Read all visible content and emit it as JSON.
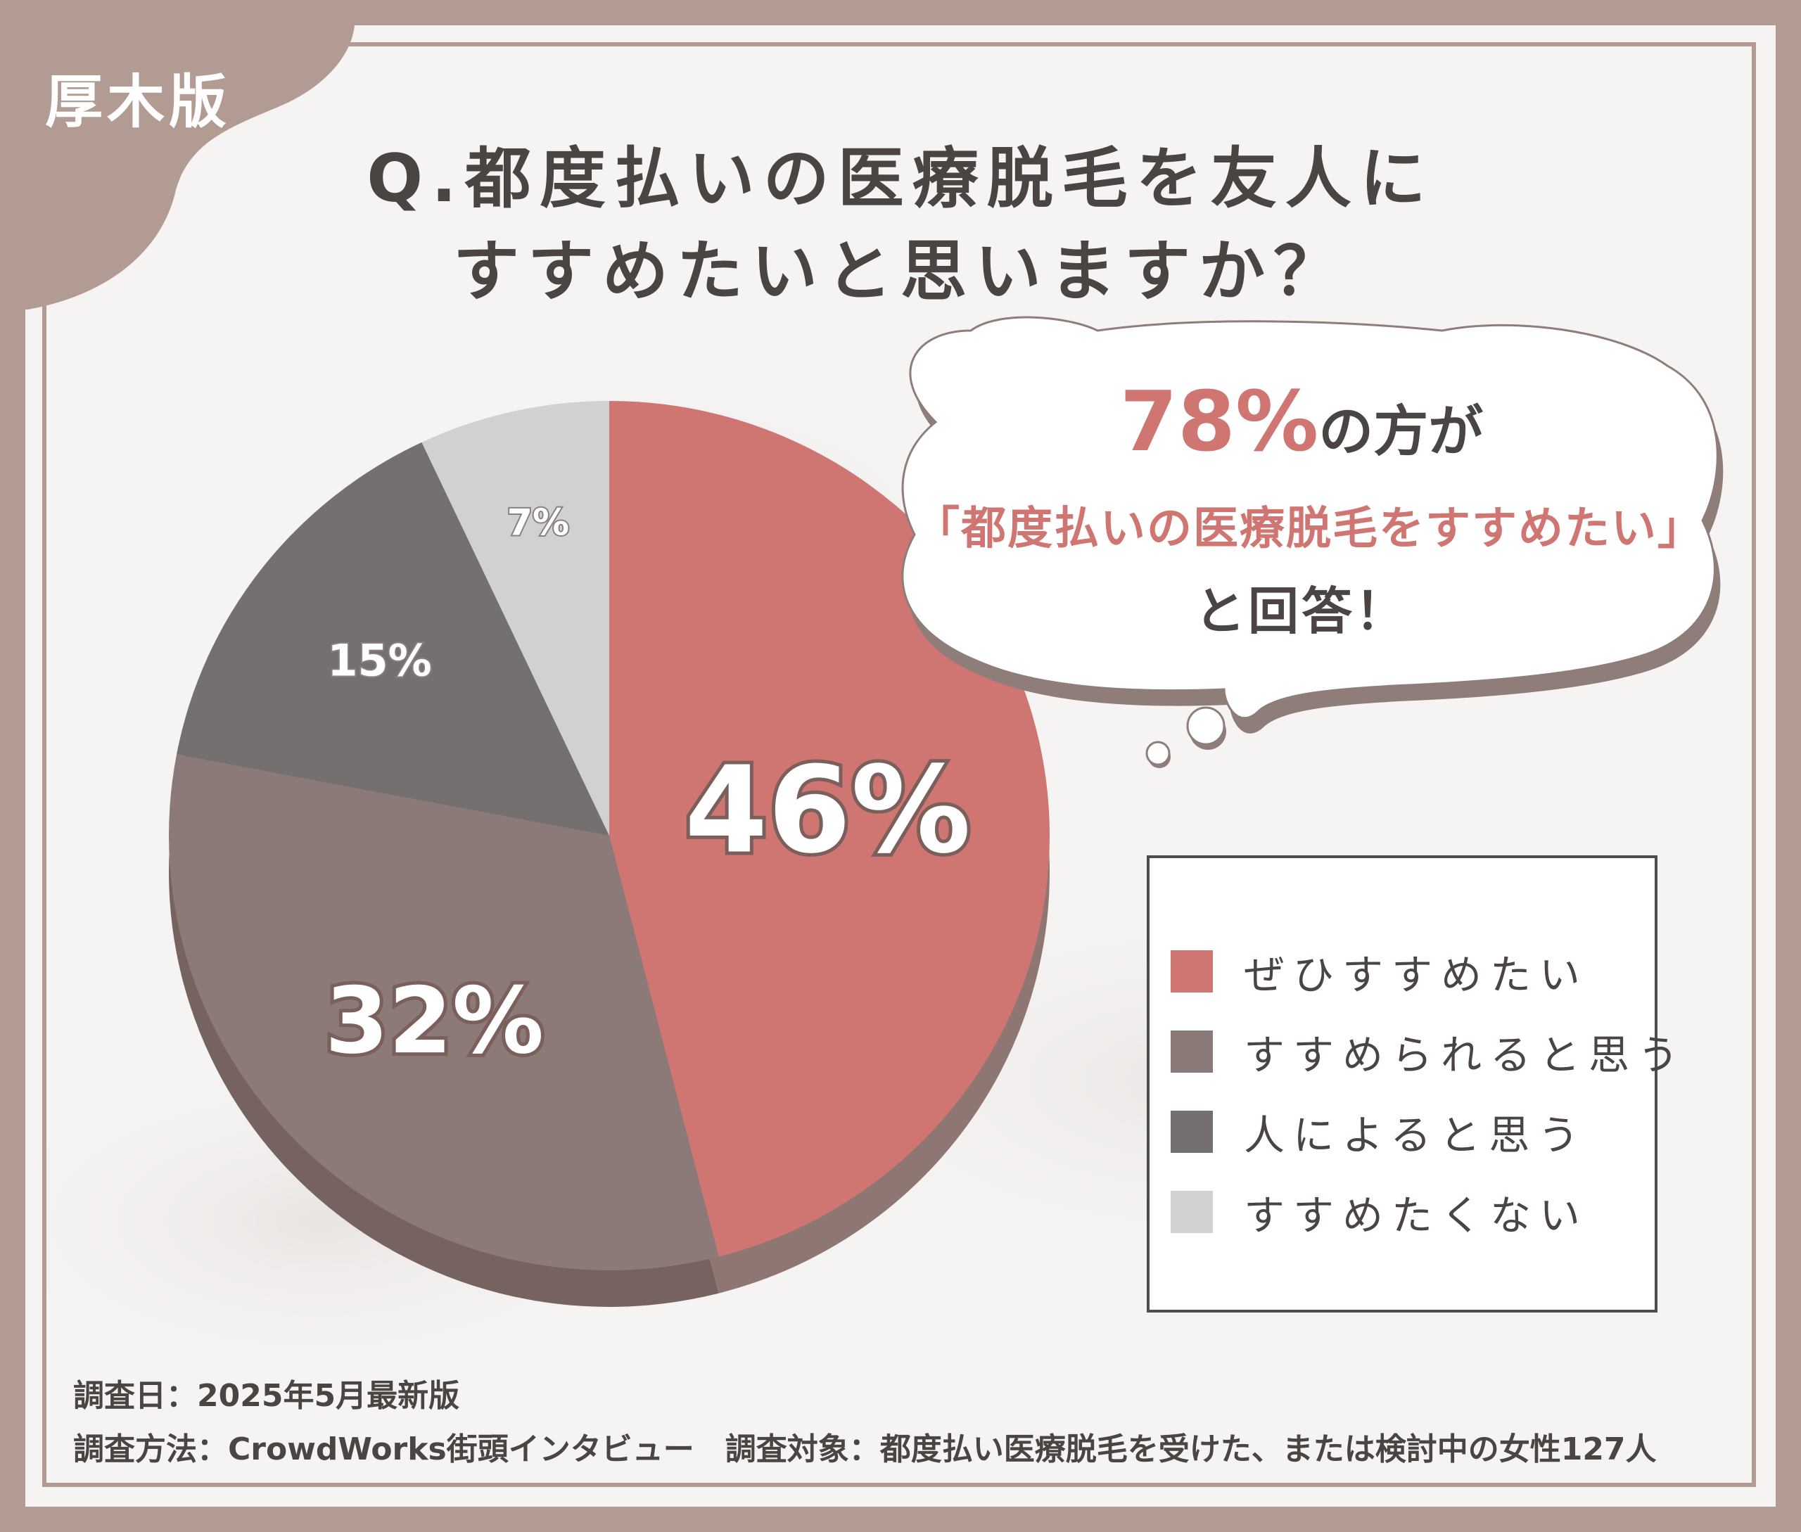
{
  "badge": "厚木版",
  "title": {
    "line1": "Q.都度払いの医療脱毛を友人に",
    "line2": "すすめたいと思いますか？"
  },
  "callout": {
    "percent": "78%",
    "line1_suffix": "の方が",
    "line2": "「都度払いの医療脱毛をすすめたい」",
    "line3": "と回答！"
  },
  "chart_data": {
    "type": "pie",
    "categories": [
      "ぜひすすめたい",
      "すすめられると思う",
      "人によると思う",
      "すすめたくない"
    ],
    "values": [
      46,
      32,
      15,
      7
    ],
    "labels": [
      "46%",
      "32%",
      "15%",
      "7%"
    ],
    "colors": [
      "#cf7672",
      "#8c7a78",
      "#757070",
      "#d1d1d1"
    ],
    "legend_position": "right"
  },
  "legend": {
    "items": [
      {
        "label": "ぜひすすめたい",
        "color": "#cf7672"
      },
      {
        "label": "すすめられると思う",
        "color": "#8c7a78"
      },
      {
        "label": "人によると思う",
        "color": "#757070"
      },
      {
        "label": "すすめたくない",
        "color": "#d1d1d1"
      }
    ]
  },
  "footer": {
    "line1": "調査日：2025年5月最新版",
    "line2": "調査方法：CrowdWorks街頭インタビュー　調査対象：都度払い医療脱毛を受けた、または検討中の女性127人"
  }
}
